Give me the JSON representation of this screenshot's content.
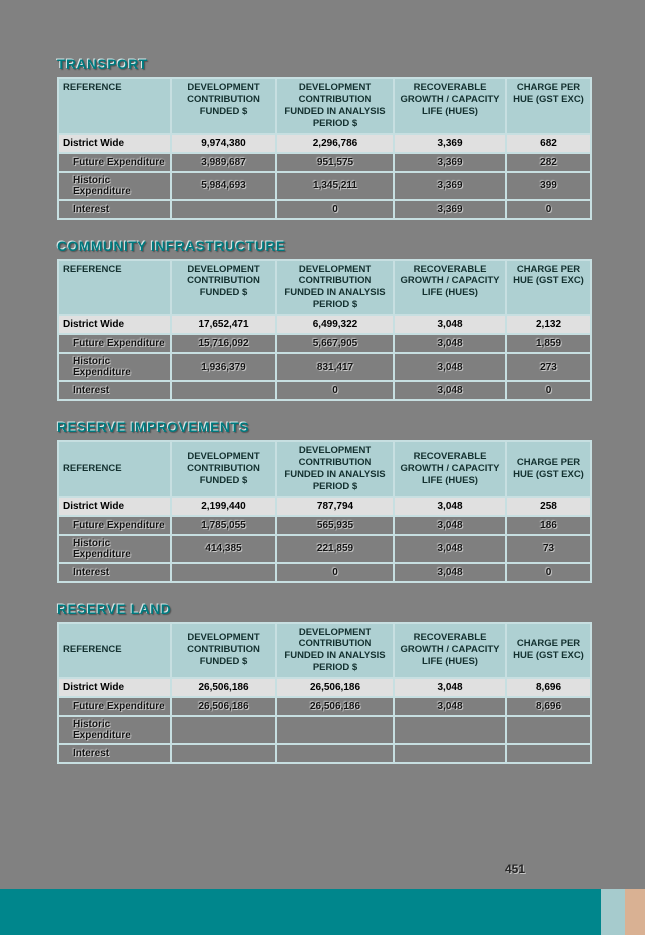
{
  "page": {
    "number": "451",
    "background_color": "#818181"
  },
  "theme": {
    "title_color": "#00797E",
    "table_header_bg": "#AED0D2",
    "total_row_bg": "#E0E0E0",
    "grid_line_color": "#C7DFE1",
    "footer_teal": "#00868C",
    "footer_light_blue": "#A6CBCD",
    "footer_tan": "#D9B193"
  },
  "columns": [
    "REFERENCE",
    "DEVELOPMENT CONTRIBUTION FUNDED $",
    "DEVELOPMENT CONTRIBUTION FUNDED IN ANALYSIS PERIOD $",
    "RECOVERABLE GROWTH / CAPACITY LIFE (HUES)",
    "CHARGE PER HUE (GST EXC)"
  ],
  "tables": [
    {
      "title": "TRANSPORT",
      "rows": [
        {
          "kind": "total",
          "label": "District Wide",
          "values": [
            "9,974,380",
            "2,296,786",
            "3,369",
            "682"
          ]
        },
        {
          "kind": "detail",
          "label": "Future Expenditure",
          "values": [
            "3,989,687",
            "951,575",
            "3,369",
            "282"
          ]
        },
        {
          "kind": "detail",
          "label": "Historic Expenditure",
          "values": [
            "5,984,693",
            "1,345,211",
            "3,369",
            "399"
          ]
        },
        {
          "kind": "detail",
          "label": "Interest",
          "values": [
            "",
            "0",
            "3,369",
            "0"
          ]
        }
      ]
    },
    {
      "title": "COMMUNITY INFRASTRUCTURE",
      "rows": [
        {
          "kind": "total",
          "label": "District Wide",
          "values": [
            "17,652,471",
            "6,499,322",
            "3,048",
            "2,132"
          ]
        },
        {
          "kind": "detail",
          "label": "Future Expenditure",
          "values": [
            "15,716,092",
            "5,667,905",
            "3,048",
            "1,859"
          ]
        },
        {
          "kind": "detail",
          "label": "Historic Expenditure",
          "values": [
            "1,936,379",
            "831,417",
            "3,048",
            "273"
          ]
        },
        {
          "kind": "detail",
          "label": "Interest",
          "values": [
            "",
            "0",
            "3,048",
            "0"
          ]
        }
      ]
    },
    {
      "title": "RESERVE IMPROVEMENTS",
      "rows": [
        {
          "kind": "total",
          "label": "District Wide",
          "values": [
            "2,199,440",
            "787,794",
            "3,048",
            "258"
          ]
        },
        {
          "kind": "detail",
          "label": "Future Expenditure",
          "values": [
            "1,785,055",
            "565,935",
            "3,048",
            "186"
          ]
        },
        {
          "kind": "detail",
          "label": "Historic Expenditure",
          "values": [
            "414,385",
            "221,859",
            "3,048",
            "73"
          ]
        },
        {
          "kind": "detail",
          "label": "Interest",
          "values": [
            "",
            "0",
            "3,048",
            "0"
          ]
        }
      ]
    },
    {
      "title": "RESERVE LAND",
      "rows": [
        {
          "kind": "total",
          "label": "District Wide",
          "values": [
            "26,506,186",
            "26,506,186",
            "3,048",
            "8,696"
          ]
        },
        {
          "kind": "detail",
          "label": "Future Expenditure",
          "values": [
            "26,506,186",
            "26,506,186",
            "3,048",
            "8,696"
          ]
        },
        {
          "kind": "detail",
          "label": "Historic Expenditure",
          "values": [
            "",
            "",
            "",
            ""
          ]
        },
        {
          "kind": "detail",
          "label": "Interest",
          "values": [
            "",
            "",
            "",
            ""
          ]
        }
      ]
    }
  ]
}
